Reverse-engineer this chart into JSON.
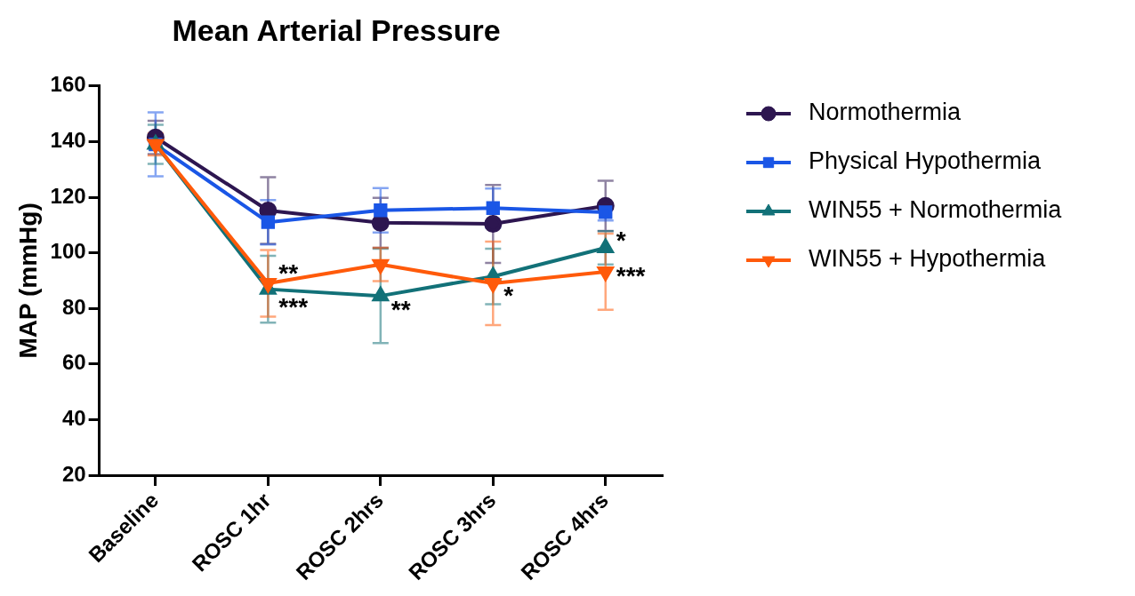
{
  "chart_data": {
    "type": "line",
    "title": "Mean Arterial Pressure",
    "ylabel": "MAP (mmHg)",
    "categories": [
      "Baseline",
      "ROSC 1hr",
      "ROSC 2hrs",
      "ROSC 3hrs",
      "ROSC 4hrs"
    ],
    "ylim": [
      20,
      160
    ],
    "yticks": [
      20,
      40,
      60,
      80,
      100,
      120,
      140,
      160
    ],
    "grid": false,
    "legend": "right",
    "line_style": "solid",
    "series": [
      {
        "name": "Normothermia",
        "color": "#2d1650",
        "marker": "circle",
        "values": [
          141.5,
          115.2,
          110.8,
          110.4,
          116.9
        ],
        "errors": [
          6,
          12,
          9,
          14,
          9
        ]
      },
      {
        "name": "Physical Hypothermia",
        "color": "#1a56e6",
        "marker": "square",
        "values": [
          139,
          111,
          115.3,
          116.1,
          114.6
        ],
        "errors": [
          11.5,
          8,
          8,
          7,
          3
        ]
      },
      {
        "name": "WIN55 + Normothermia",
        "color": "#127178",
        "marker": "triangle",
        "values": [
          139,
          86.9,
          84.5,
          91.5,
          101.8
        ],
        "errors": [
          7,
          12,
          17,
          10,
          6
        ]
      },
      {
        "name": "WIN55 + Hypothermia",
        "color": "#ff5a0a",
        "marker": "triangle-down",
        "values": [
          139,
          89,
          95.8,
          89,
          93.2
        ],
        "errors": [
          4,
          12,
          6,
          15,
          13.7
        ]
      }
    ],
    "annotations": [
      {
        "text": "**",
        "x": "ROSC 1hr",
        "y": 94
      },
      {
        "text": "***",
        "x": "ROSC 1hr",
        "y": 82
      },
      {
        "text": "**",
        "x": "ROSC 2hrs",
        "y": 81
      },
      {
        "text": "*",
        "x": "ROSC 3hrs",
        "y": 86
      },
      {
        "text": "*",
        "x": "ROSC 4hrs",
        "y": 106
      },
      {
        "text": "***",
        "x": "ROSC 4hrs",
        "y": 93
      }
    ]
  }
}
